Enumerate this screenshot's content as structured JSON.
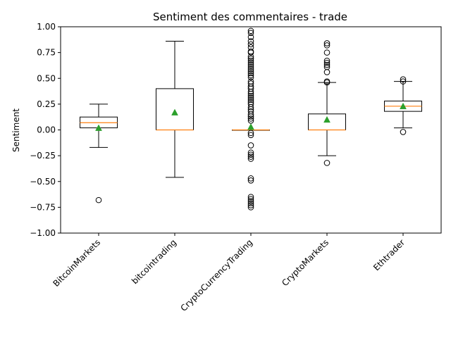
{
  "chart_data": {
    "type": "boxplot",
    "title": "Sentiment des commentaires - trade",
    "xlabel": "",
    "ylabel": "Sentiment",
    "ylim": [
      -1.0,
      1.0
    ],
    "yticks": [
      "−1.00",
      "−0.75",
      "−0.50",
      "−0.25",
      "0.00",
      "0.25",
      "0.50",
      "0.75",
      "1.00"
    ],
    "ytick_values": [
      -1.0,
      -0.75,
      -0.5,
      -0.25,
      0.0,
      0.25,
      0.5,
      0.75,
      1.0
    ],
    "grid": false,
    "colors": {
      "box": "#000000",
      "median": "#ff7f0e",
      "mean": "#2ca02c",
      "flier": "#000000"
    },
    "categories": [
      "BitcoinMarkets",
      "bitcointrading",
      "CryptoCurrencyTrading",
      "CryptoMarkets",
      "Ethtrader"
    ],
    "series": [
      {
        "label": "BitcoinMarkets",
        "whisker_low": -0.17,
        "q1": 0.02,
        "median": 0.07,
        "q3": 0.125,
        "whisker_high": 0.25,
        "mean": 0.02,
        "fliers": [
          -0.68
        ]
      },
      {
        "label": "bitcointrading",
        "whisker_low": -0.46,
        "q1": 0.0,
        "median": 0.0,
        "q3": 0.4,
        "whisker_high": 0.86,
        "mean": 0.17,
        "fliers": []
      },
      {
        "label": "CryptoCurrencyTrading",
        "whisker_low": 0.0,
        "q1": 0.0,
        "median": 0.0,
        "q3": 0.0,
        "whisker_high": 0.0,
        "mean": 0.03,
        "fliers": [
          0.96,
          0.94,
          0.9,
          0.86,
          0.83,
          0.8,
          0.76,
          0.75,
          0.71,
          0.69,
          0.67,
          0.65,
          0.63,
          0.61,
          0.59,
          0.57,
          0.55,
          0.53,
          0.51,
          0.47,
          0.45,
          0.42,
          0.4,
          0.37,
          0.35,
          0.33,
          0.31,
          0.29,
          0.27,
          0.25,
          0.22,
          0.2,
          0.18,
          0.15,
          0.13,
          0.11,
          0.09,
          -0.03,
          -0.05,
          -0.15,
          -0.22,
          -0.24,
          -0.26,
          -0.28,
          -0.47,
          -0.49,
          -0.65,
          -0.67,
          -0.69,
          -0.71,
          -0.73,
          -0.75
        ]
      },
      {
        "label": "CryptoMarkets",
        "whisker_low": -0.25,
        "q1": 0.0,
        "median": 0.0,
        "q3": 0.155,
        "whisker_high": 0.46,
        "mean": 0.1,
        "fliers": [
          0.84,
          0.82,
          0.75,
          0.67,
          0.65,
          0.63,
          0.61,
          0.56,
          0.47,
          0.46,
          -0.32
        ]
      },
      {
        "label": "Ethtrader",
        "whisker_low": 0.02,
        "q1": 0.18,
        "median": 0.23,
        "q3": 0.28,
        "whisker_high": 0.47,
        "mean": 0.23,
        "fliers": [
          0.49,
          0.47,
          -0.02
        ]
      }
    ]
  }
}
